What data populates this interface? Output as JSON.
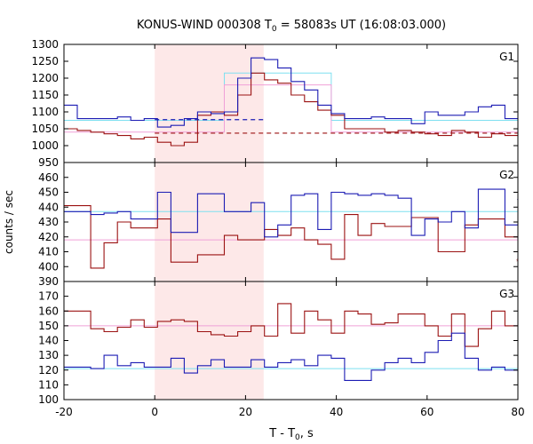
{
  "chart_data": {
    "type": "line",
    "title": "KONUS-WIND 000308 T",
    "title_sub": "0",
    "title_rest": " = 58083s UT (16:08:03.000)",
    "ylabel": "counts / sec",
    "xlabel_main": "T - T",
    "xlabel_sub": "0",
    "xlabel_rest": ", s",
    "xlim": [
      -20,
      80
    ],
    "x_ticks": [
      -20,
      0,
      20,
      40,
      60,
      80
    ],
    "highlight_interval": [
      0,
      24
    ],
    "colors": {
      "blue": "#1c1cb4",
      "red": "#9b1212",
      "cyan": "#7ee0f0",
      "pink": "#f0a0d8",
      "highlight": "#fde8e8"
    },
    "panels": [
      {
        "label": "G1",
        "ylim": [
          950,
          1300
        ],
        "y_ticks": [
          950,
          1000,
          1050,
          1100,
          1150,
          1200,
          1250,
          1300
        ],
        "step_width": 2.944,
        "x_start": -20,
        "series": [
          {
            "color_key": "blue",
            "values": [
              1120,
              1080,
              1080,
              1080,
              1085,
              1075,
              1080,
              1055,
              1060,
              1080,
              1100,
              1095,
              1100,
              1200,
              1260,
              1255,
              1230,
              1190,
              1165,
              1120,
              1095,
              1080,
              1080,
              1085,
              1080,
              1080,
              1065,
              1100,
              1090,
              1090,
              1100,
              1115,
              1120,
              1080,
              1090,
              1080,
              1075,
              1080,
              1080,
              1085,
              1080,
              1070,
              1070,
              1090,
              1100,
              1100,
              1120,
              1080,
              1080,
              1080,
              1090,
              1090,
              1075,
              1080,
              1070,
              1080,
              1080,
              1075,
              1080,
              1085,
              1100
            ]
          },
          {
            "color_key": "red",
            "values": [
              1050,
              1045,
              1040,
              1035,
              1030,
              1020,
              1025,
              1010,
              1000,
              1010,
              1090,
              1100,
              1090,
              1150,
              1215,
              1195,
              1185,
              1150,
              1130,
              1105,
              1090,
              1050,
              1050,
              1050,
              1040,
              1045,
              1040,
              1035,
              1030,
              1045,
              1040,
              1025,
              1035,
              1030,
              1040,
              1035,
              1040,
              1040,
              1035,
              1030,
              1040,
              1045,
              1030,
              1040,
              1020,
              1045,
              1050,
              1030,
              1035,
              1035,
              1040,
              1040,
              1030,
              1035,
              1030,
              1040,
              1035,
              1030,
              1040,
              1035,
              1020
            ]
          },
          {
            "color_key": "cyan",
            "values": [
              1075,
              1075,
              1075,
              1075,
              1075,
              1075,
              1075,
              1075,
              1075,
              1075,
              1075,
              1075,
              1215,
              1215,
              1215,
              1215,
              1215,
              1215,
              1215,
              1215,
              1075,
              1075,
              1075,
              1075,
              1075,
              1075,
              1075,
              1075,
              1075,
              1075,
              1075,
              1075,
              1075,
              1075,
              1075,
              1075,
              1075,
              1075,
              1075,
              1075,
              1075,
              1075,
              1075,
              1075,
              1075,
              1075,
              1075,
              1075,
              1075,
              1075,
              1075,
              1075,
              1075,
              1075,
              1075,
              1075,
              1075,
              1075,
              1075,
              1075,
              1075
            ]
          },
          {
            "color_key": "pink",
            "values": [
              1040,
              1040,
              1040,
              1040,
              1040,
              1040,
              1040,
              1040,
              1040,
              1040,
              1040,
              1040,
              1180,
              1180,
              1180,
              1180,
              1180,
              1180,
              1180,
              1180,
              1040,
              1040,
              1040,
              1040,
              1040,
              1040,
              1040,
              1040,
              1040,
              1040,
              1040,
              1040,
              1040,
              1040,
              1040,
              1040,
              1040,
              1040,
              1040,
              1040,
              1040,
              1040,
              1040,
              1040,
              1040,
              1040,
              1040,
              1040,
              1040,
              1040,
              1040,
              1040,
              1040,
              1040,
              1040,
              1040,
              1040,
              1040,
              1040,
              1040,
              1040
            ]
          }
        ],
        "dashed": [
          {
            "color_key": "blue",
            "y": 1077,
            "x_range": [
              0,
              24
            ]
          },
          {
            "color_key": "red",
            "y": 1037,
            "x_range": [
              0,
              80
            ]
          }
        ]
      },
      {
        "label": "G2",
        "ylim": [
          390,
          470
        ],
        "y_ticks": [
          390,
          400,
          410,
          420,
          430,
          440,
          450,
          460
        ],
        "step_width": 2.944,
        "x_start": -20,
        "series": [
          {
            "color_key": "blue",
            "values": [
              437,
              437,
              435,
              436,
              437,
              432,
              432,
              450,
              423,
              423,
              449,
              449,
              437,
              437,
              443,
              420,
              428,
              448,
              449,
              425,
              450,
              449,
              448,
              449,
              448,
              446,
              421,
              432,
              430,
              437,
              426,
              452,
              452,
              428,
              448,
              445,
              420,
              448,
              448,
              446,
              426,
              425,
              425,
              445,
              445,
              436,
              438,
              445,
              430,
              444,
              433,
              443,
              426,
              433,
              427,
              421,
              443,
              445,
              425,
              437,
              437
            ]
          },
          {
            "color_key": "red",
            "values": [
              441,
              441,
              399,
              416,
              430,
              426,
              426,
              432,
              403,
              403,
              408,
              408,
              421,
              418,
              418,
              425,
              421,
              426,
              418,
              415,
              405,
              435,
              421,
              429,
              427,
              427,
              433,
              433,
              410,
              410,
              428,
              432,
              432,
              420,
              404,
              410,
              405,
              421,
              427,
              420,
              419,
              419,
              414,
              427,
              417,
              417,
              410,
              420,
              421,
              428,
              413,
              420,
              433,
              426,
              410,
              428,
              411,
              411,
              433,
              420,
              420
            ]
          },
          {
            "color_key": "cyan",
            "values": [
              437,
              437,
              437,
              437,
              437,
              437,
              437,
              437,
              437,
              437,
              437,
              437,
              437,
              437,
              437,
              437,
              437,
              437,
              437,
              437,
              437,
              437,
              437,
              437,
              437,
              437,
              437,
              437,
              437,
              437,
              437,
              437,
              437,
              437,
              437,
              437,
              437,
              437,
              437,
              437,
              437,
              437,
              437,
              437,
              437,
              437,
              437,
              437,
              437,
              437,
              437,
              437,
              437,
              437,
              437,
              437,
              437,
              437,
              437,
              437,
              437
            ]
          },
          {
            "color_key": "pink",
            "values": [
              418,
              418,
              418,
              418,
              418,
              418,
              418,
              418,
              418,
              418,
              418,
              418,
              418,
              418,
              418,
              418,
              418,
              418,
              418,
              418,
              418,
              418,
              418,
              418,
              418,
              418,
              418,
              418,
              418,
              418,
              418,
              418,
              418,
              418,
              418,
              418,
              418,
              418,
              418,
              418,
              418,
              418,
              418,
              418,
              418,
              418,
              418,
              418,
              418,
              418,
              418,
              418,
              418,
              418,
              418,
              418,
              418,
              418,
              418,
              418,
              418
            ]
          }
        ],
        "dashed": []
      },
      {
        "label": "G3",
        "ylim": [
          100,
          180
        ],
        "y_ticks": [
          100,
          110,
          120,
          130,
          140,
          150,
          160,
          170
        ],
        "step_width": 2.944,
        "x_start": -20,
        "series": [
          {
            "color_key": "blue",
            "values": [
              122,
              122,
              121,
              130,
              123,
              125,
              122,
              122,
              128,
              118,
              123,
              127,
              122,
              122,
              127,
              122,
              125,
              127,
              123,
              130,
              128,
              113,
              113,
              120,
              125,
              128,
              125,
              132,
              140,
              145,
              128,
              120,
              122,
              120,
              120,
              125,
              122,
              122,
              122,
              125,
              120,
              122,
              120,
              122,
              125,
              120,
              122,
              122,
              122,
              125,
              122,
              125,
              130,
              122,
              122,
              140,
              125,
              122,
              122,
              125,
              122
            ]
          },
          {
            "color_key": "red",
            "values": [
              160,
              160,
              148,
              146,
              149,
              154,
              149,
              153,
              154,
              153,
              146,
              144,
              143,
              146,
              150,
              143,
              165,
              145,
              160,
              154,
              145,
              160,
              158,
              151,
              152,
              158,
              158,
              150,
              143,
              158,
              136,
              148,
              160,
              150,
              149,
              154,
              148,
              155,
              154,
              158,
              148,
              158,
              158,
              147,
              163,
              156,
              143,
              143,
              150,
              154,
              149,
              149,
              150,
              160,
              148,
              149,
              149,
              148,
              153,
              150,
              150
            ]
          },
          {
            "color_key": "cyan",
            "values": [
              121,
              121,
              121,
              121,
              121,
              121,
              121,
              121,
              121,
              121,
              121,
              121,
              121,
              121,
              121,
              121,
              121,
              121,
              121,
              121,
              121,
              121,
              121,
              121,
              121,
              121,
              121,
              121,
              121,
              121,
              121,
              121,
              121,
              121,
              121,
              121,
              121,
              121,
              121,
              121,
              121,
              121,
              121,
              121,
              121,
              121,
              121,
              121,
              121,
              121,
              121,
              121,
              121,
              121,
              121,
              121,
              121,
              121,
              121,
              121,
              121
            ]
          },
          {
            "color_key": "pink",
            "values": [
              150,
              150,
              150,
              150,
              150,
              150,
              150,
              150,
              150,
              150,
              150,
              150,
              150,
              150,
              150,
              150,
              150,
              150,
              150,
              150,
              150,
              150,
              150,
              150,
              150,
              150,
              150,
              150,
              150,
              150,
              150,
              150,
              150,
              150,
              150,
              150,
              150,
              150,
              150,
              150,
              150,
              150,
              150,
              150,
              150,
              150,
              150,
              150,
              150,
              150,
              150,
              150,
              150,
              150,
              150,
              150,
              150,
              150,
              150,
              150,
              150
            ]
          }
        ],
        "dashed": []
      }
    ]
  }
}
